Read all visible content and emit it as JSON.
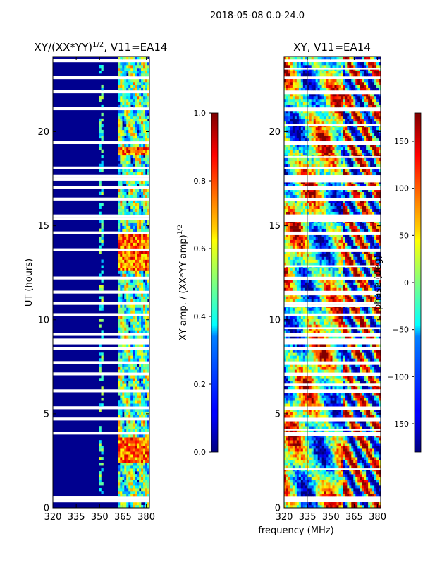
{
  "figure": {
    "suptitle": "2018-05-08 0.0-24.0"
  },
  "chart_data": [
    {
      "type": "heatmap",
      "title_main": "XY/(XX*YY)",
      "title_sup": "1/2",
      "title_tail": ", V11=EA14",
      "xlabel": "",
      "ylabel": "UT (hours)",
      "xlim": [
        320,
        382
      ],
      "ylim": [
        0,
        24
      ],
      "xticks": [
        320,
        335,
        350,
        365,
        380
      ],
      "yticks": [
        0,
        5,
        10,
        15,
        20
      ],
      "colorbar": {
        "label_main": "XY amp. / (XX*YY amp)",
        "label_sup": "1/2",
        "range": [
          0.0,
          1.0
        ],
        "ticks": [
          "0.0",
          "0.2",
          "0.4",
          "0.6",
          "0.8",
          "1.0"
        ],
        "tick_values": [
          0.0,
          0.2,
          0.4,
          0.6,
          0.8,
          1.0
        ],
        "colormap": "jet"
      }
    },
    {
      "type": "heatmap",
      "title": "XY, V11=EA14",
      "xlabel": "frequency (MHz)",
      "ylabel": "",
      "xlim": [
        320,
        382
      ],
      "ylim": [
        0,
        24
      ],
      "xticks": [
        320,
        335,
        350,
        365,
        380
      ],
      "yticks": [
        0,
        5,
        10,
        15,
        20
      ],
      "colorbar": {
        "label": "phase (deg)",
        "range": [
          -180,
          180
        ],
        "ticks": [
          "−150",
          "−100",
          "−50",
          "0",
          "50",
          "100",
          "150"
        ],
        "tick_values": [
          -150,
          -100,
          -50,
          0,
          50,
          100,
          150
        ],
        "colormap": "jet"
      }
    }
  ]
}
